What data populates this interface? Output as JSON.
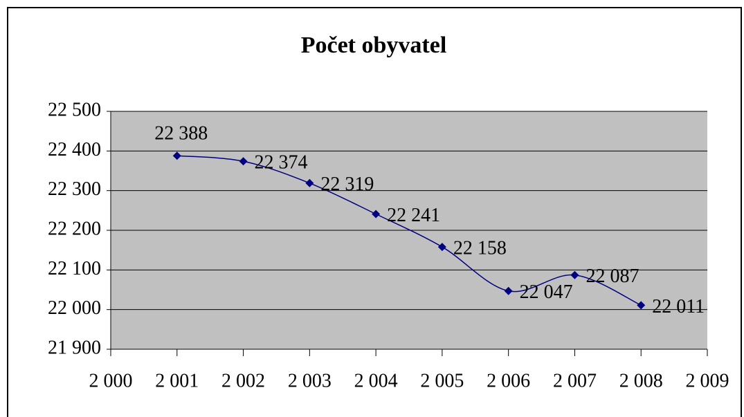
{
  "chart_data": {
    "type": "line",
    "title": "Počet obyvatel",
    "x": [
      2001,
      2002,
      2003,
      2004,
      2005,
      2006,
      2007,
      2008
    ],
    "series": [
      {
        "color": "#000080",
        "values": [
          22388,
          22374,
          22319,
          22241,
          22158,
          22047,
          22087,
          22011
        ],
        "value_labels": [
          "22 388",
          "22 374",
          "22 319",
          "22 241",
          "22 158",
          "22 047",
          "22 087",
          "22 011"
        ]
      }
    ],
    "xlim": [
      2000,
      2009
    ],
    "xticks": [
      {
        "value": 2000,
        "label": "2 000"
      },
      {
        "value": 2001,
        "label": "2 001"
      },
      {
        "value": 2002,
        "label": "2 002"
      },
      {
        "value": 2003,
        "label": "2 003"
      },
      {
        "value": 2004,
        "label": "2 004"
      },
      {
        "value": 2005,
        "label": "2 005"
      },
      {
        "value": 2006,
        "label": "2 006"
      },
      {
        "value": 2007,
        "label": "2 007"
      },
      {
        "value": 2008,
        "label": "2 008"
      },
      {
        "value": 2009,
        "label": "2 009"
      }
    ],
    "ylim": [
      21900,
      22500
    ],
    "yticks": [
      {
        "value": 21900,
        "label": "21 900"
      },
      {
        "value": 22000,
        "label": "22 000"
      },
      {
        "value": 22100,
        "label": "22 100"
      },
      {
        "value": 22200,
        "label": "22 200"
      },
      {
        "value": 22300,
        "label": "22 300"
      },
      {
        "value": 22400,
        "label": "22 400"
      },
      {
        "value": 22500,
        "label": "22 500"
      }
    ],
    "grid": true,
    "smooth": true,
    "marker": "diamond"
  }
}
